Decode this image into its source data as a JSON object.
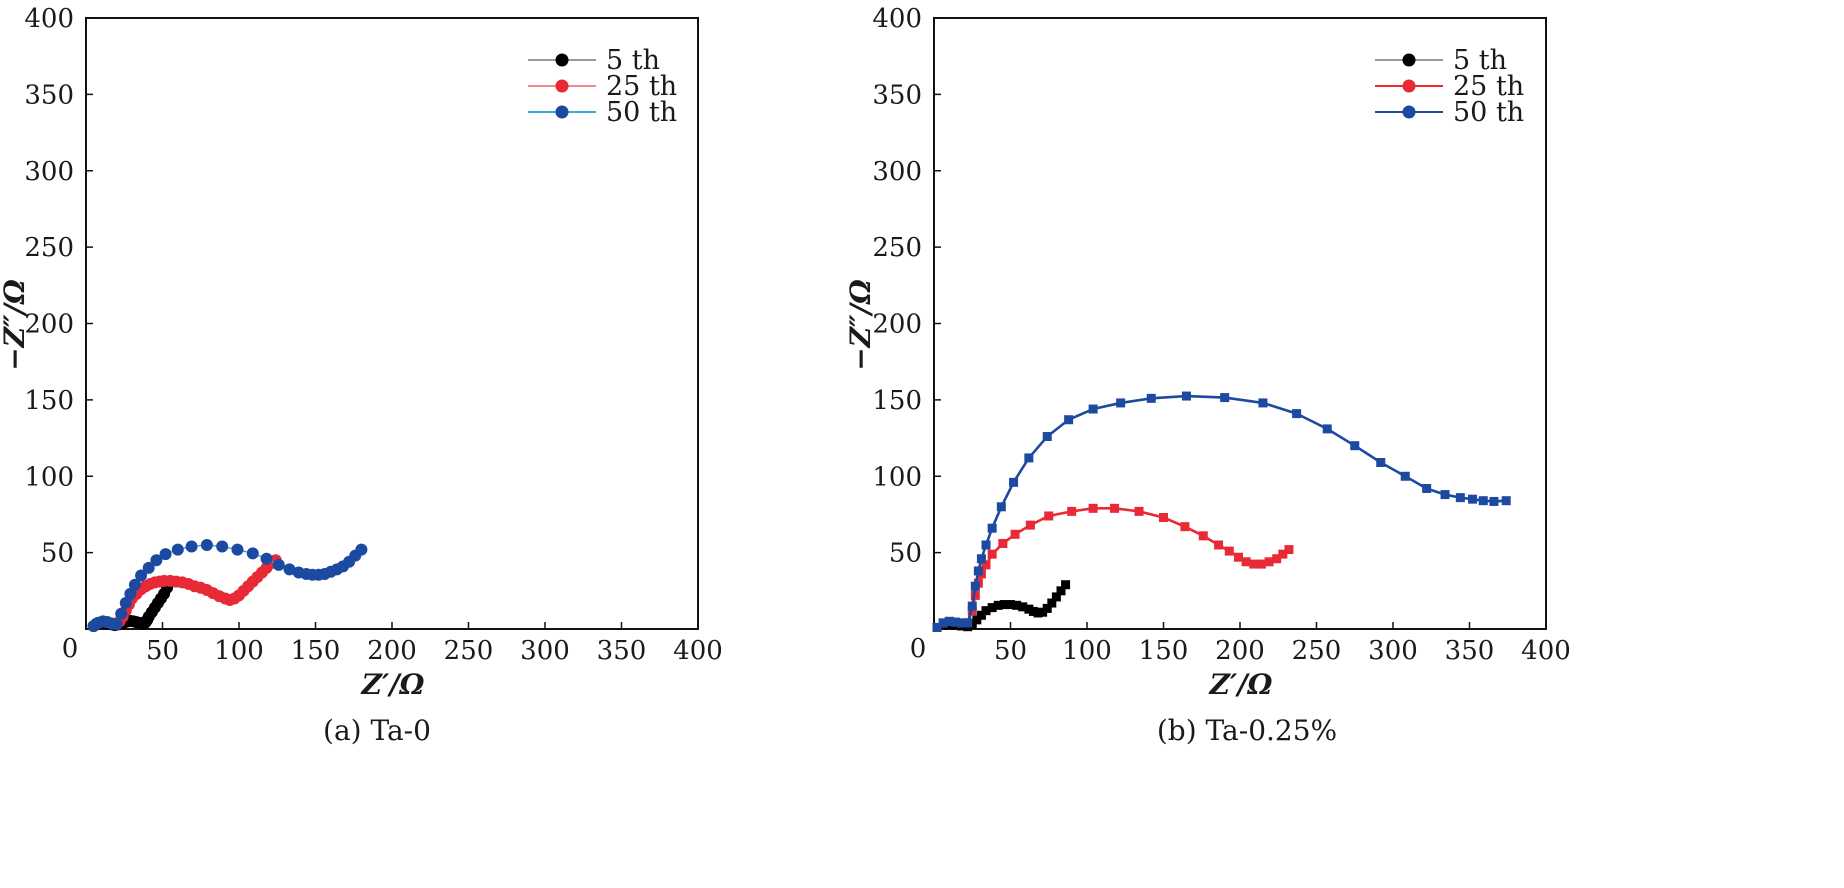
{
  "chart_data": [
    {
      "type": "scatter",
      "panel_caption": "(a) Ta-0",
      "xlabel": "Z′/Ω",
      "ylabel": "−Z″/Ω",
      "xlim": [
        0,
        400
      ],
      "ylim": [
        0,
        400
      ],
      "xticks": [
        0,
        50,
        100,
        150,
        200,
        250,
        300,
        350,
        400
      ],
      "yticks": [
        50,
        100,
        150,
        200,
        250,
        300,
        350,
        400
      ],
      "legend_position": "top-right",
      "marker": "circle",
      "series": [
        {
          "name": "5 th",
          "color": "#000000",
          "line_color": "#9a96a8",
          "x": [
            5,
            7,
            9,
            11,
            13,
            15,
            17,
            19,
            21,
            23,
            25,
            27,
            29,
            31,
            33,
            35,
            37,
            38,
            39,
            40,
            41,
            43,
            45,
            47,
            49,
            51,
            53
          ],
          "y": [
            2,
            3.5,
            4,
            4.2,
            4,
            3.5,
            3,
            2.5,
            3,
            3.5,
            4.2,
            5,
            5.3,
            5,
            4.5,
            4,
            3.5,
            3.5,
            4.5,
            6,
            8,
            11,
            14,
            17,
            20,
            23,
            27
          ]
        },
        {
          "name": "25 th",
          "color": "#e82a36",
          "line_color": "#f08a8f",
          "x": [
            5,
            8,
            11,
            14,
            17,
            20,
            22,
            24,
            26,
            28,
            30,
            33,
            36,
            39,
            42,
            45,
            48,
            51,
            55,
            59,
            63,
            67,
            71,
            75,
            79,
            83,
            87,
            91,
            94,
            97,
            100,
            103,
            106,
            109,
            112,
            115,
            118,
            121,
            124
          ],
          "y": [
            2,
            4,
            5,
            4.5,
            3.5,
            3,
            5,
            8,
            12,
            16,
            20,
            23,
            26,
            28,
            29.5,
            30.5,
            31,
            31.5,
            31.5,
            31,
            30.5,
            29.5,
            28,
            27,
            25.5,
            23.5,
            21.5,
            20,
            19,
            20,
            22,
            25,
            28,
            31,
            34,
            37,
            40,
            43,
            45
          ]
        },
        {
          "name": "50 th",
          "color": "#1c4aa0",
          "line_color": "#3aa9da",
          "x": [
            5,
            8,
            11,
            14,
            17,
            20,
            23,
            26,
            29,
            32,
            36,
            41,
            46,
            52,
            60,
            69,
            79,
            89,
            99,
            109,
            118,
            126,
            133,
            139,
            144,
            148,
            152,
            156,
            160,
            164,
            168,
            172,
            176,
            180
          ],
          "y": [
            2,
            4,
            5,
            4.5,
            3.5,
            3,
            10,
            17,
            23,
            29,
            35,
            40,
            45,
            49,
            52,
            54,
            55,
            54,
            52,
            49.5,
            46,
            42,
            39,
            37,
            36,
            35.5,
            35.5,
            36,
            37.5,
            39,
            41,
            44,
            48,
            52
          ]
        }
      ]
    },
    {
      "type": "line",
      "panel_caption": "(b) Ta-0.25%",
      "xlabel": "Z′/Ω",
      "ylabel": "−Z″/Ω",
      "xlim": [
        0,
        400
      ],
      "ylim": [
        0,
        400
      ],
      "xticks": [
        0,
        50,
        100,
        150,
        200,
        250,
        300,
        350,
        400
      ],
      "yticks": [
        50,
        100,
        150,
        200,
        250,
        300,
        350,
        400
      ],
      "legend_position": "top-right",
      "marker": "square",
      "legend_marker": "circle",
      "series": [
        {
          "name": "5 th",
          "color": "#000000",
          "line_color": "#9a96a8",
          "x": [
            2,
            6,
            10,
            14,
            18,
            22,
            25,
            28,
            31,
            34,
            38,
            42,
            46,
            50,
            54,
            58,
            62,
            65,
            68,
            71,
            74,
            77,
            80,
            83,
            86
          ],
          "y": [
            1,
            2.5,
            3,
            2.5,
            2,
            1.5,
            3,
            6,
            9,
            12,
            14,
            15.5,
            16,
            16,
            15.5,
            14.5,
            13,
            11.5,
            10.5,
            11,
            13.5,
            17,
            21,
            25,
            29
          ]
        },
        {
          "name": "25 th",
          "color": "#e82a36",
          "line_color": "#e82a36",
          "x": [
            2,
            6,
            10,
            14,
            18,
            22,
            25,
            27,
            29,
            31,
            34,
            38,
            45,
            53,
            63,
            75,
            90,
            104,
            118,
            134,
            150,
            164,
            176,
            186,
            193,
            199,
            204,
            209,
            214,
            219,
            224,
            228,
            232
          ],
          "y": [
            1,
            4,
            5,
            4.5,
            4,
            4,
            12,
            22,
            30,
            36,
            42,
            49,
            56,
            62,
            68,
            74,
            77,
            79,
            79,
            77,
            73,
            67,
            61,
            55,
            51,
            47,
            44,
            42.5,
            42.5,
            44,
            46,
            49,
            52
          ]
        },
        {
          "name": "50 th",
          "color": "#1c4aa0",
          "line_color": "#1c4aa0",
          "x": [
            2,
            6,
            10,
            14,
            18,
            22,
            25,
            27,
            29,
            31,
            34,
            38,
            44,
            52,
            62,
            74,
            88,
            104,
            122,
            142,
            165,
            190,
            215,
            237,
            257,
            275,
            292,
            308,
            322,
            334,
            344,
            352,
            359,
            366,
            374
          ],
          "y": [
            1,
            4,
            5,
            4.5,
            4,
            4,
            15,
            28,
            38,
            46,
            55,
            66,
            80,
            96,
            112,
            126,
            137,
            144,
            148,
            151,
            152.5,
            151.5,
            148,
            141,
            131,
            120,
            109,
            100,
            92,
            88,
            86,
            85,
            84,
            83.5,
            84
          ]
        }
      ]
    }
  ]
}
